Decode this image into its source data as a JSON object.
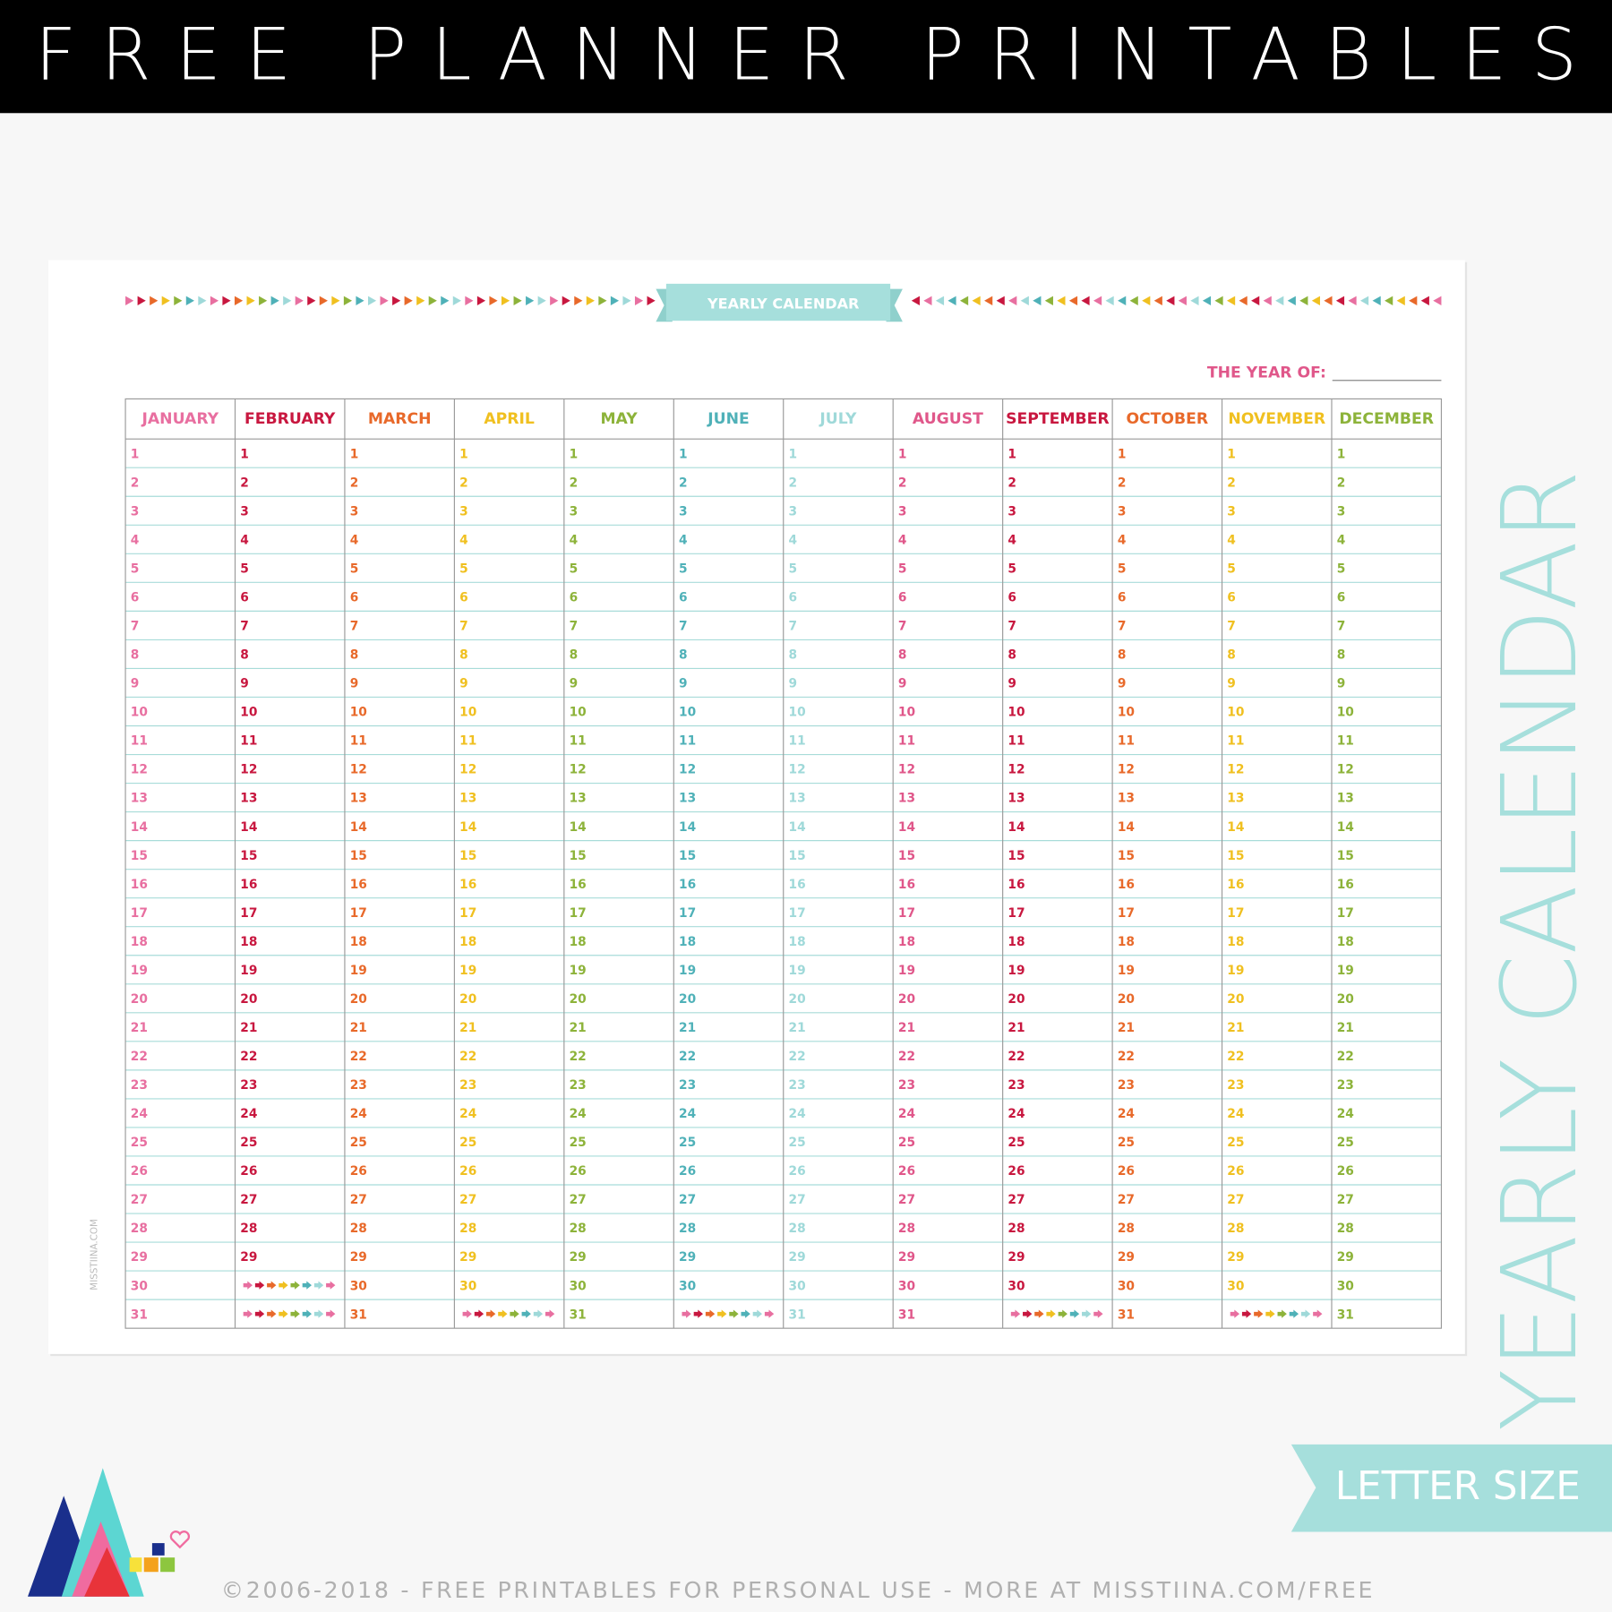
{
  "header": {
    "title": "FREE PLANNER PRINTABLES"
  },
  "calendar": {
    "title": "YEARLY CALENDAR",
    "year_label": "THE YEAR OF:",
    "months": [
      {
        "name": "JANUARY",
        "color": "#e86fa0",
        "days": [
          1,
          2,
          3,
          4,
          5,
          6,
          7,
          8,
          9,
          10,
          11,
          12,
          13,
          14,
          15,
          16,
          17,
          18,
          19,
          20,
          21,
          22,
          23,
          24,
          25,
          26,
          27,
          28,
          29,
          30,
          31
        ]
      },
      {
        "name": "FEBRUARY",
        "color": "#c8173f",
        "days": [
          1,
          2,
          3,
          4,
          5,
          6,
          7,
          8,
          9,
          10,
          11,
          12,
          13,
          14,
          15,
          16,
          17,
          18,
          19,
          20,
          21,
          22,
          23,
          24,
          25,
          26,
          27,
          28,
          29
        ]
      },
      {
        "name": "MARCH",
        "color": "#e8692a",
        "days": [
          1,
          2,
          3,
          4,
          5,
          6,
          7,
          8,
          9,
          10,
          11,
          12,
          13,
          14,
          15,
          16,
          17,
          18,
          19,
          20,
          21,
          22,
          23,
          24,
          25,
          26,
          27,
          28,
          29,
          30,
          31
        ]
      },
      {
        "name": "APRIL",
        "color": "#f0c020",
        "days": [
          1,
          2,
          3,
          4,
          5,
          6,
          7,
          8,
          9,
          10,
          11,
          12,
          13,
          14,
          15,
          16,
          17,
          18,
          19,
          20,
          21,
          22,
          23,
          24,
          25,
          26,
          27,
          28,
          29,
          30
        ]
      },
      {
        "name": "MAY",
        "color": "#8db33a",
        "days": [
          1,
          2,
          3,
          4,
          5,
          6,
          7,
          8,
          9,
          10,
          11,
          12,
          13,
          14,
          15,
          16,
          17,
          18,
          19,
          20,
          21,
          22,
          23,
          24,
          25,
          26,
          27,
          28,
          29,
          30,
          31
        ]
      },
      {
        "name": "JUNE",
        "color": "#4fb1b8",
        "days": [
          1,
          2,
          3,
          4,
          5,
          6,
          7,
          8,
          9,
          10,
          11,
          12,
          13,
          14,
          15,
          16,
          17,
          18,
          19,
          20,
          21,
          22,
          23,
          24,
          25,
          26,
          27,
          28,
          29,
          30
        ]
      },
      {
        "name": "JULY",
        "color": "#9fd9d9",
        "days": [
          1,
          2,
          3,
          4,
          5,
          6,
          7,
          8,
          9,
          10,
          11,
          12,
          13,
          14,
          15,
          16,
          17,
          18,
          19,
          20,
          21,
          22,
          23,
          24,
          25,
          26,
          27,
          28,
          29,
          30,
          31
        ]
      },
      {
        "name": "AUGUST",
        "color": "#e0578a",
        "days": [
          1,
          2,
          3,
          4,
          5,
          6,
          7,
          8,
          9,
          10,
          11,
          12,
          13,
          14,
          15,
          16,
          17,
          18,
          19,
          20,
          21,
          22,
          23,
          24,
          25,
          26,
          27,
          28,
          29,
          30,
          31
        ]
      },
      {
        "name": "SEPTEMBER",
        "color": "#c8173f",
        "days": [
          1,
          2,
          3,
          4,
          5,
          6,
          7,
          8,
          9,
          10,
          11,
          12,
          13,
          14,
          15,
          16,
          17,
          18,
          19,
          20,
          21,
          22,
          23,
          24,
          25,
          26,
          27,
          28,
          29,
          30
        ]
      },
      {
        "name": "OCTOBER",
        "color": "#e8692a",
        "days": [
          1,
          2,
          3,
          4,
          5,
          6,
          7,
          8,
          9,
          10,
          11,
          12,
          13,
          14,
          15,
          16,
          17,
          18,
          19,
          20,
          21,
          22,
          23,
          24,
          25,
          26,
          27,
          28,
          29,
          30,
          31
        ]
      },
      {
        "name": "NOVEMBER",
        "color": "#f0c020",
        "days": [
          1,
          2,
          3,
          4,
          5,
          6,
          7,
          8,
          9,
          10,
          11,
          12,
          13,
          14,
          15,
          16,
          17,
          18,
          19,
          20,
          21,
          22,
          23,
          24,
          25,
          26,
          27,
          28,
          29,
          30
        ]
      },
      {
        "name": "DECEMBER",
        "color": "#8db33a",
        "days": [
          1,
          2,
          3,
          4,
          5,
          6,
          7,
          8,
          9,
          10,
          11,
          12,
          13,
          14,
          15,
          16,
          17,
          18,
          19,
          20,
          21,
          22,
          23,
          24,
          25,
          26,
          27,
          28,
          29,
          30,
          31
        ]
      }
    ]
  },
  "watermark": "MISSTIINA.COM",
  "side_title": "YEARLY CALENDAR",
  "badge": "LETTER SIZE",
  "footer": "©2006-2018 - FREE PRINTABLES FOR PERSONAL USE - MORE AT MISSTIINA.COM/FREE"
}
